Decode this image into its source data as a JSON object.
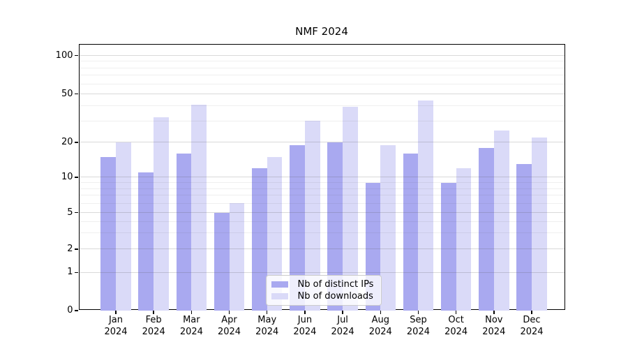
{
  "chart_data": {
    "type": "bar",
    "title": "NMF 2024",
    "categories": [
      "Jan 2024",
      "Feb 2024",
      "Mar 2024",
      "Apr 2024",
      "May 2024",
      "Jun 2024",
      "Jul 2024",
      "Aug 2024",
      "Sep 2024",
      "Oct 2024",
      "Nov 2024",
      "Dec 2024"
    ],
    "month_labels": [
      "Jan",
      "Feb",
      "Mar",
      "Apr",
      "May",
      "Jun",
      "Jul",
      "Aug",
      "Sep",
      "Oct",
      "Nov",
      "Dec"
    ],
    "year_label": "2024",
    "series": [
      {
        "name": "Nb of distinct IPs",
        "color": "#a9a9f0",
        "values": [
          15,
          11,
          16,
          5,
          12,
          19,
          20,
          9,
          16,
          9,
          18,
          13
        ]
      },
      {
        "name": "Nb of downloads",
        "color": "#dadaf8",
        "values": [
          20,
          32,
          41,
          6,
          15,
          30,
          39,
          19,
          44,
          12,
          25,
          22
        ]
      }
    ],
    "xlabel": "",
    "ylabel": "",
    "yscale": "symlog",
    "y_ticks": [
      0,
      1,
      2,
      5,
      10,
      20,
      50,
      100
    ],
    "y_minor_ticks": [
      3,
      4,
      6,
      7,
      8,
      9,
      30,
      40,
      60,
      70,
      80,
      90
    ],
    "ylim": [
      0,
      120
    ],
    "grid": true,
    "grid_above_bars": true,
    "legend_position": "lower center"
  }
}
